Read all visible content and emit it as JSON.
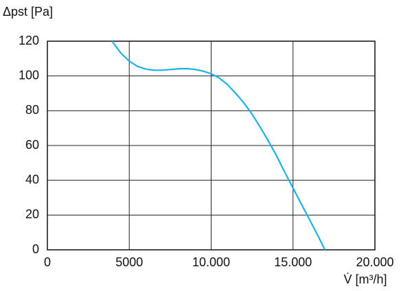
{
  "chart_data": {
    "type": "line",
    "y_label": "Δpst [Pa]",
    "x_label": "V̇ [m³/h]",
    "x": [
      3950,
      4500,
      5000,
      5500,
      6000,
      6500,
      7000,
      7500,
      8000,
      8500,
      9000,
      9500,
      10000,
      10500,
      11000,
      11500,
      12000,
      12500,
      13000,
      13500,
      14000,
      14500,
      15000,
      15500,
      16000,
      16500,
      16950
    ],
    "series": [
      {
        "color": "#1ab0e8",
        "values": [
          120,
          113,
          108.5,
          105.5,
          104,
          103.3,
          103.3,
          103.7,
          104.1,
          104.2,
          103.8,
          102.8,
          101.3,
          98.8,
          95,
          90,
          84.5,
          78,
          70.5,
          62.5,
          54,
          44.5,
          35.5,
          26.5,
          17.5,
          8.5,
          0
        ]
      }
    ],
    "xlim": [
      0,
      20000
    ],
    "ylim": [
      0,
      120
    ],
    "xticks": [
      0,
      5000,
      {
        "value": 10000,
        "label": "10.000"
      },
      {
        "value": 15000,
        "label": "15.000"
      },
      {
        "value": 20000,
        "label": "20.000"
      }
    ],
    "yticks": [
      0,
      20,
      40,
      60,
      80,
      100,
      120
    ],
    "grid": true
  }
}
